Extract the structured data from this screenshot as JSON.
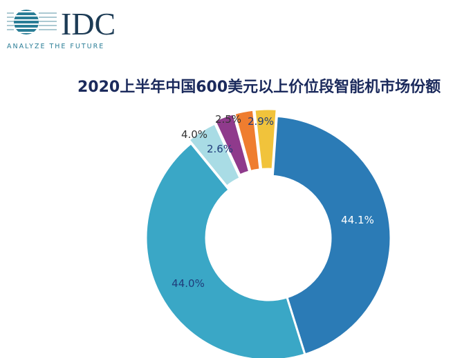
{
  "logo": {
    "text": "IDC",
    "tagline": "ANALYZE THE FUTURE"
  },
  "chart_data": {
    "type": "pie",
    "donut": true,
    "title": "2020上半年中国600美元以上价位段智能机市场份额",
    "values": [
      44.1,
      44.0,
      4.0,
      2.6,
      2.5,
      2.9
    ],
    "labels": [
      "44.1%",
      "44.0%",
      "4.0%",
      "2.6%",
      "2.5%",
      "2.9%"
    ],
    "colors": [
      "#2b7bb6",
      "#3aa7c6",
      "#a9dce5",
      "#8f3a8c",
      "#ef7d2f",
      "#f1c33b"
    ],
    "legend": "none"
  }
}
